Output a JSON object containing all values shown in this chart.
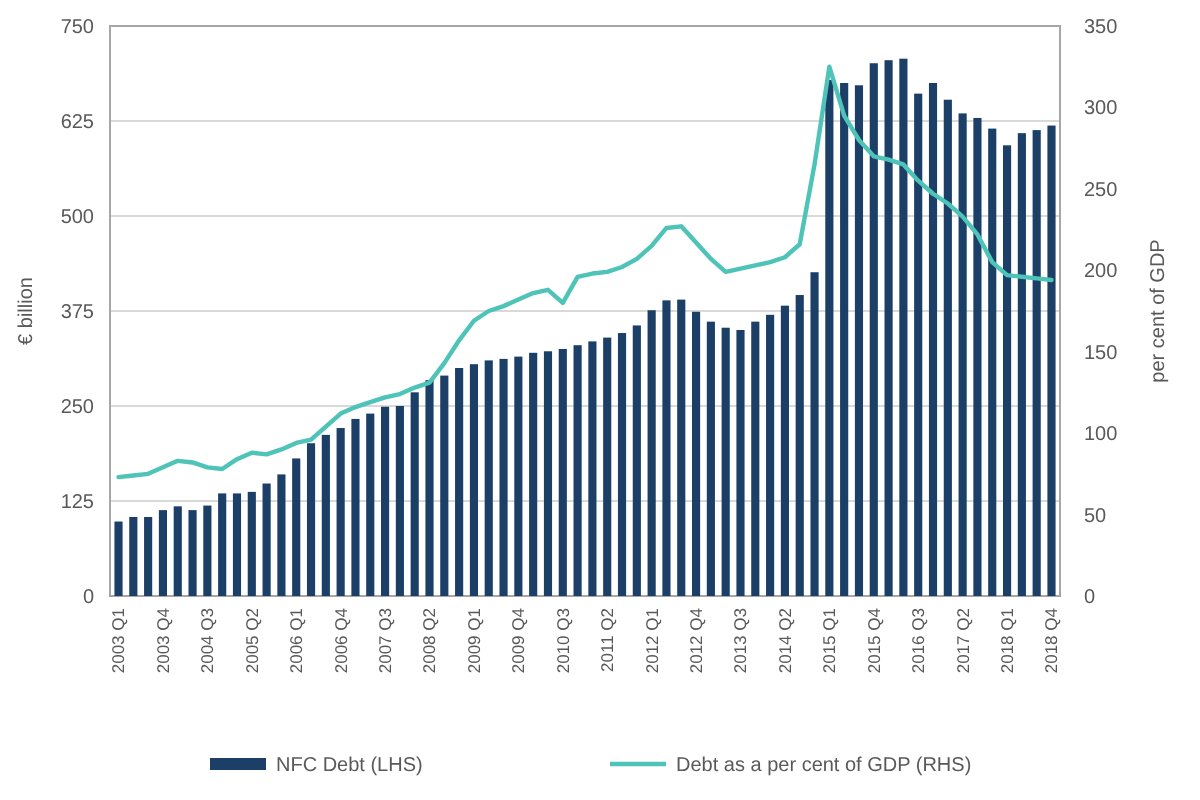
{
  "chart_data": {
    "type": "bar",
    "ylabel": "€ billion",
    "y2label": "per cent of GDP",
    "categories": [
      "2003 Q1",
      null,
      null,
      "2003 Q4",
      null,
      null,
      "2004 Q3",
      null,
      null,
      "2005 Q2",
      null,
      null,
      "2006 Q1",
      null,
      null,
      "2006 Q4",
      null,
      null,
      "2007 Q3",
      null,
      null,
      "2008 Q2",
      null,
      null,
      "2009 Q1",
      null,
      null,
      "2009 Q4",
      null,
      null,
      "2010 Q3",
      null,
      null,
      "2011 Q2",
      null,
      null,
      "2012 Q1",
      null,
      null,
      "2012 Q4",
      null,
      null,
      "2013 Q3",
      null,
      null,
      "2014 Q2",
      null,
      null,
      "2015 Q1",
      null,
      null,
      "2015 Q4",
      null,
      null,
      "2016 Q3",
      null,
      null,
      "2017 Q2",
      null,
      null,
      "2018 Q1",
      null,
      null,
      "2018 Q4"
    ],
    "series": [
      {
        "name": "NFC Debt (LHS)",
        "color": "#1b3f66",
        "values": [
          98,
          104,
          104,
          113,
          118,
          113,
          119,
          135,
          135,
          137,
          148,
          160,
          181,
          201,
          212,
          221,
          233,
          240,
          249,
          250,
          268,
          284,
          290,
          300,
          305,
          310,
          312,
          315,
          320,
          322,
          325,
          330,
          335,
          340,
          346,
          356,
          376,
          389,
          390,
          374,
          361,
          353,
          350,
          361,
          370,
          382,
          396,
          426,
          679,
          675,
          672,
          701,
          705,
          707,
          661,
          675,
          653,
          635,
          629,
          615,
          593,
          609,
          613,
          619
        ]
      },
      {
        "name": "Debt as a per cent of GDP (RHS)",
        "type": "line",
        "axis": "y2",
        "color": "#4ec3b8",
        "values": [
          73,
          74,
          75,
          79,
          83,
          82,
          79,
          78,
          84,
          88,
          87,
          90,
          94,
          96,
          104,
          112,
          116,
          119,
          122,
          124,
          128,
          131,
          143,
          157,
          169,
          175,
          178,
          182,
          186,
          188,
          180,
          196,
          198,
          199,
          202,
          207,
          215,
          226,
          227,
          217,
          207,
          199,
          201,
          203,
          205,
          208,
          216,
          265,
          325,
          295,
          280,
          270,
          268,
          265,
          255,
          247,
          241,
          233,
          222,
          205,
          197,
          196,
          195,
          194
        ]
      }
    ],
    "ylim": [
      0,
      750
    ],
    "yticks": [
      0,
      125,
      250,
      375,
      500,
      625,
      750
    ],
    "y2lim": [
      0,
      350
    ],
    "y2ticks": [
      0,
      50,
      100,
      150,
      200,
      250,
      300,
      350
    ],
    "grid": "y",
    "legend": "bottom"
  }
}
